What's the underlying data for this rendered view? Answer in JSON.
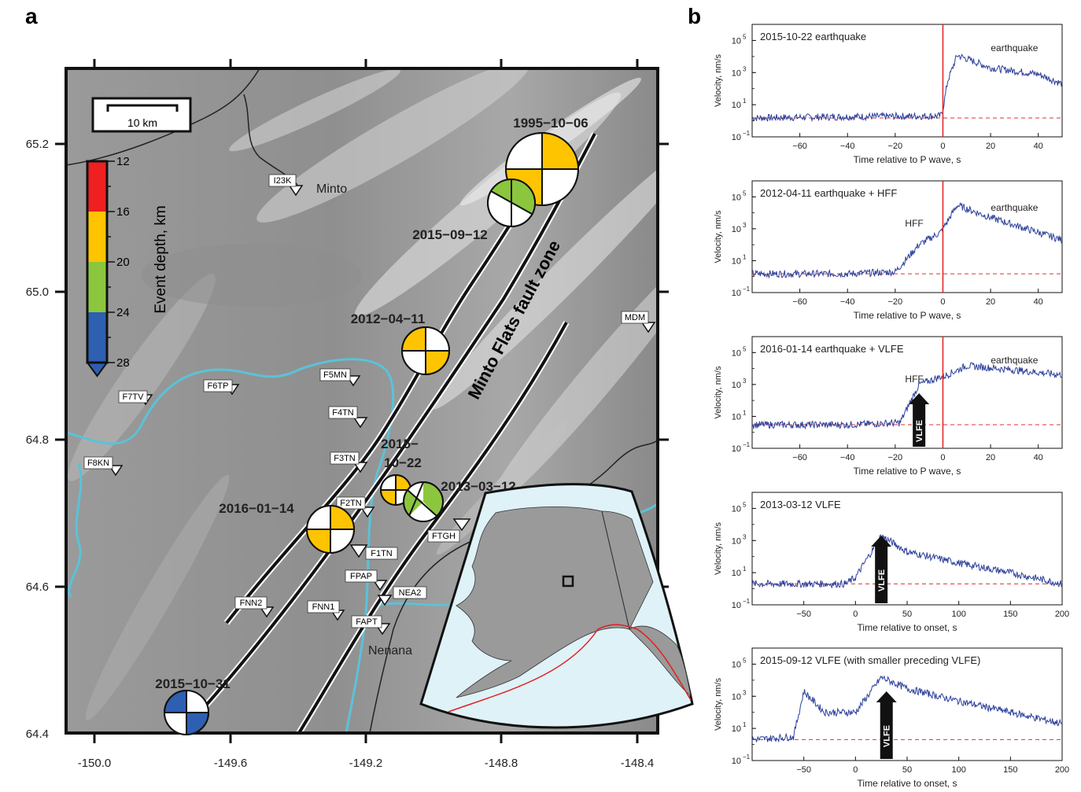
{
  "panel_a": {
    "label": "a",
    "scalebar": "10 km",
    "colorbar": {
      "title": "Event depth, km",
      "ticks": [
        "12",
        "16",
        "20",
        "24",
        "28"
      ],
      "colors": [
        "#ee2020",
        "#ffc400",
        "#8cc63e",
        "#2e5fb0"
      ]
    },
    "lon_ticks": [
      "-150.0",
      "-149.6",
      "-149.2",
      "-148.8",
      "-148.4"
    ],
    "lat_ticks": [
      "65.2",
      "65.0",
      "64.8",
      "64.6",
      "64.4"
    ],
    "fault_label": "Minto Flats fault zone",
    "towns": {
      "minto": "Minto",
      "nenana": "Nenana"
    },
    "stations": {
      "i23k": "I23K",
      "mdm": "MDM",
      "f7tv": "F7TV",
      "f6tp": "F6TP",
      "f5mn": "F5MN",
      "f4tn": "F4TN",
      "f3tn": "F3TN",
      "f8kn": "F8KN",
      "f2tn": "F2TN",
      "f1tn": "F1TN",
      "ftgh": "FTGH",
      "fpap": "FPAP",
      "nea2": "NEA2",
      "fnn2": "FNN2",
      "fnn1": "FNN1",
      "fapt": "FAPT"
    },
    "events": {
      "e1995": "1995−10−06",
      "e20150912": "2015−09−12",
      "e2012": "2012−04−11",
      "e2015a": "2015−",
      "e2015b": "10−22",
      "e2013": "2013−03−12",
      "e2016": "2016−01−14",
      "e20151031": "2015−10−31"
    }
  },
  "panel_b": {
    "label": "b",
    "y_axis_label": "Velocity, nm/s",
    "y_ticks": [
      "10",
      "10",
      "10",
      "10"
    ],
    "y_exps": [
      "5",
      "3",
      "1",
      "−1"
    ],
    "rows": [
      {
        "title": "2015-10-22 earthquake",
        "xlabel": "Time relative to P wave, s",
        "xticks": [
          "−60",
          "−40",
          "−20",
          "0",
          "20",
          "40"
        ],
        "annotations": [
          "earthquake"
        ]
      },
      {
        "title": "2012-04-11 earthquake + HFF",
        "xlabel": "Time relative to P wave, s",
        "xticks": [
          "−60",
          "−40",
          "−20",
          "0",
          "20",
          "40"
        ],
        "annotations": [
          "earthquake",
          "HFF"
        ]
      },
      {
        "title": "2016-01-14 earthquake + VLFE",
        "xlabel": "Time relative to P wave, s",
        "xticks": [
          "−60",
          "−40",
          "−20",
          "0",
          "20",
          "40"
        ],
        "annotations": [
          "earthquake",
          "HFF"
        ],
        "arrow": "VLFE"
      },
      {
        "title": "2013-03-12 VLFE",
        "xlabel": "Time relative to onset, s",
        "xticks": [
          "−50",
          "0",
          "50",
          "100",
          "150",
          "200"
        ],
        "annotations": [],
        "arrow": "VLFE"
      },
      {
        "title": "2015-09-12 VLFE (with smaller preceding VLFE)",
        "xlabel": "Time relative to onset, s",
        "xticks": [
          "−50",
          "0",
          "50",
          "100",
          "150",
          "200"
        ],
        "annotations": [],
        "arrow": "VLFE"
      }
    ]
  },
  "chart_data": [
    {
      "type": "line",
      "title": "2015-10-22 earthquake",
      "xlabel": "Time relative to P wave, s",
      "ylabel": "Velocity, nm/s",
      "xlim": [
        -80,
        50
      ],
      "ylim_log10": [
        -1,
        6
      ],
      "series": [
        {
          "x": [
            -80,
            -40,
            -1,
            0,
            2,
            6,
            20,
            40,
            50
          ],
          "y": [
            1.5,
            1.8,
            2,
            5,
            300,
            12000,
            2000,
            800,
            200
          ]
        }
      ]
    },
    {
      "type": "line",
      "title": "2012-04-11 earthquake + HFF",
      "xlabel": "Time relative to P wave, s",
      "ylabel": "Velocity, nm/s",
      "xlim": [
        -80,
        50
      ],
      "ylim_log10": [
        -1,
        6
      ],
      "series": [
        {
          "x": [
            -80,
            -40,
            -20,
            -10,
            -1,
            0,
            6,
            20,
            50
          ],
          "y": [
            1.5,
            1.5,
            2,
            100,
            600,
            1000,
            30000,
            5000,
            200
          ]
        }
      ]
    },
    {
      "type": "line",
      "title": "2016-01-14 earthquake + VLFE",
      "xlabel": "Time relative to P wave, s",
      "ylabel": "Velocity, nm/s",
      "xlim": [
        -80,
        50
      ],
      "ylim_log10": [
        -1,
        6
      ],
      "series": [
        {
          "x": [
            -80,
            -40,
            -18,
            -10,
            -1,
            0,
            10,
            30,
            50
          ],
          "y": [
            3,
            3,
            4,
            1000,
            3000,
            3000,
            15000,
            8000,
            4000
          ]
        }
      ]
    },
    {
      "type": "line",
      "title": "2013-03-12 VLFE",
      "xlabel": "Time relative to onset, s",
      "ylabel": "Velocity, nm/s",
      "xlim": [
        -100,
        200
      ],
      "ylim_log10": [
        -1,
        6
      ],
      "series": [
        {
          "x": [
            -100,
            -10,
            0,
            25,
            50,
            100,
            150,
            200
          ],
          "y": [
            2,
            2,
            5,
            2000,
            200,
            40,
            10,
            2
          ]
        }
      ]
    },
    {
      "type": "line",
      "title": "2015-09-12 VLFE (with smaller preceding VLFE)",
      "xlabel": "Time relative to onset, s",
      "ylabel": "Velocity, nm/s",
      "xlim": [
        -100,
        200
      ],
      "ylim_log10": [
        -1,
        6
      ],
      "series": [
        {
          "x": [
            -100,
            -60,
            -50,
            -30,
            0,
            25,
            50,
            100,
            150,
            200
          ],
          "y": [
            2,
            3,
            2000,
            100,
            100,
            15000,
            3000,
            500,
            100,
            20
          ]
        }
      ]
    }
  ]
}
